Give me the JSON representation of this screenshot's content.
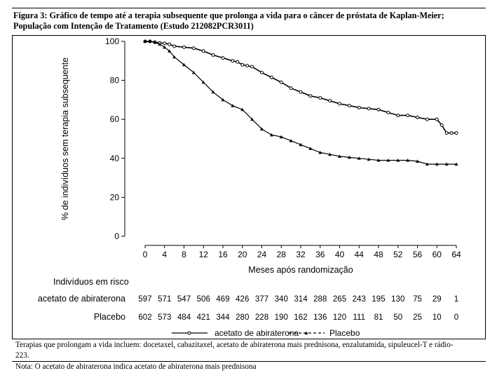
{
  "figure": {
    "title": "Figura 3: Gráfico de tempo até a terapia subsequente que prolonga a vida para o câncer de próstata de Kaplan-Meier; População com Intenção de Tratamento (Estudo 212082PCR3011)",
    "footnote1": "Terapias que prolongam a vida incluem: docetaxel, cabazitaxel, acetato de abiraterona mais prednisona, enzalutamida, sipuleucel-T e rádio-223.",
    "footnote2": "Nota: O acetato de abiraterona indica acetato de abiraterona mais prednisona"
  },
  "chart_data": {
    "type": "line",
    "title": "",
    "xlabel": "Meses após randomização",
    "ylabel": "% de indivíduos sem terapia subsequente",
    "xlim": [
      0,
      64
    ],
    "ylim": [
      0,
      100
    ],
    "xticks": [
      0,
      4,
      8,
      12,
      16,
      20,
      24,
      28,
      32,
      36,
      40,
      44,
      48,
      52,
      56,
      60,
      64
    ],
    "yticks": [
      0,
      20,
      40,
      60,
      80,
      100
    ],
    "grid": false,
    "legend": "bottom",
    "series": [
      {
        "name": "acetato de abiraterona",
        "color": "#000000",
        "line": "solid",
        "marker": "circle",
        "x": [
          0,
          1,
          2,
          3,
          4,
          5,
          6,
          8,
          10,
          12,
          14,
          16,
          18,
          19,
          20,
          21,
          22,
          24,
          26,
          28,
          30,
          32,
          34,
          36,
          38,
          40,
          42,
          44,
          46,
          48,
          50,
          52,
          54,
          56,
          58,
          60,
          61,
          62,
          63,
          64
        ],
        "y": [
          100,
          100,
          99.6,
          99.2,
          99,
          98.5,
          97.5,
          97,
          96.5,
          95,
          93,
          91.5,
          90,
          89.5,
          88,
          87.5,
          87,
          84,
          81.5,
          79,
          76,
          74,
          72,
          71,
          69.5,
          68,
          67,
          66,
          65.5,
          65,
          63.5,
          62,
          62,
          61,
          60,
          60,
          57,
          53,
          53,
          53
        ]
      },
      {
        "name": "Placebo",
        "color": "#000000",
        "line": "dashed",
        "marker": "triangle",
        "x": [
          0,
          1,
          2,
          3,
          4,
          5,
          6,
          8,
          10,
          12,
          14,
          16,
          18,
          20,
          22,
          24,
          26,
          28,
          30,
          32,
          34,
          36,
          38,
          40,
          42,
          44,
          46,
          48,
          50,
          52,
          54,
          56,
          58,
          60,
          62,
          64
        ],
        "y": [
          100,
          100,
          99.5,
          98.5,
          97,
          95,
          92,
          88,
          84,
          79,
          74,
          70,
          67,
          65,
          60,
          55,
          52,
          51,
          49,
          47,
          45,
          43,
          42,
          41,
          40.5,
          40,
          39.5,
          39,
          39,
          39,
          39,
          38.5,
          37,
          37,
          37,
          37
        ]
      }
    ]
  },
  "risk_table": {
    "title": "Indivíduos em risco",
    "rows": [
      {
        "label": "acetato de abiraterona",
        "values": [
          "597",
          "571",
          "547",
          "506",
          "469",
          "426",
          "377",
          "340",
          "314",
          "288",
          "265",
          "243",
          "195",
          "130",
          "75",
          "29",
          "1"
        ]
      },
      {
        "label": "Placebo",
        "values": [
          "602",
          "573",
          "484",
          "421",
          "344",
          "280",
          "228",
          "190",
          "162",
          "136",
          "120",
          "111",
          "81",
          "50",
          "25",
          "10",
          "0"
        ]
      }
    ]
  }
}
